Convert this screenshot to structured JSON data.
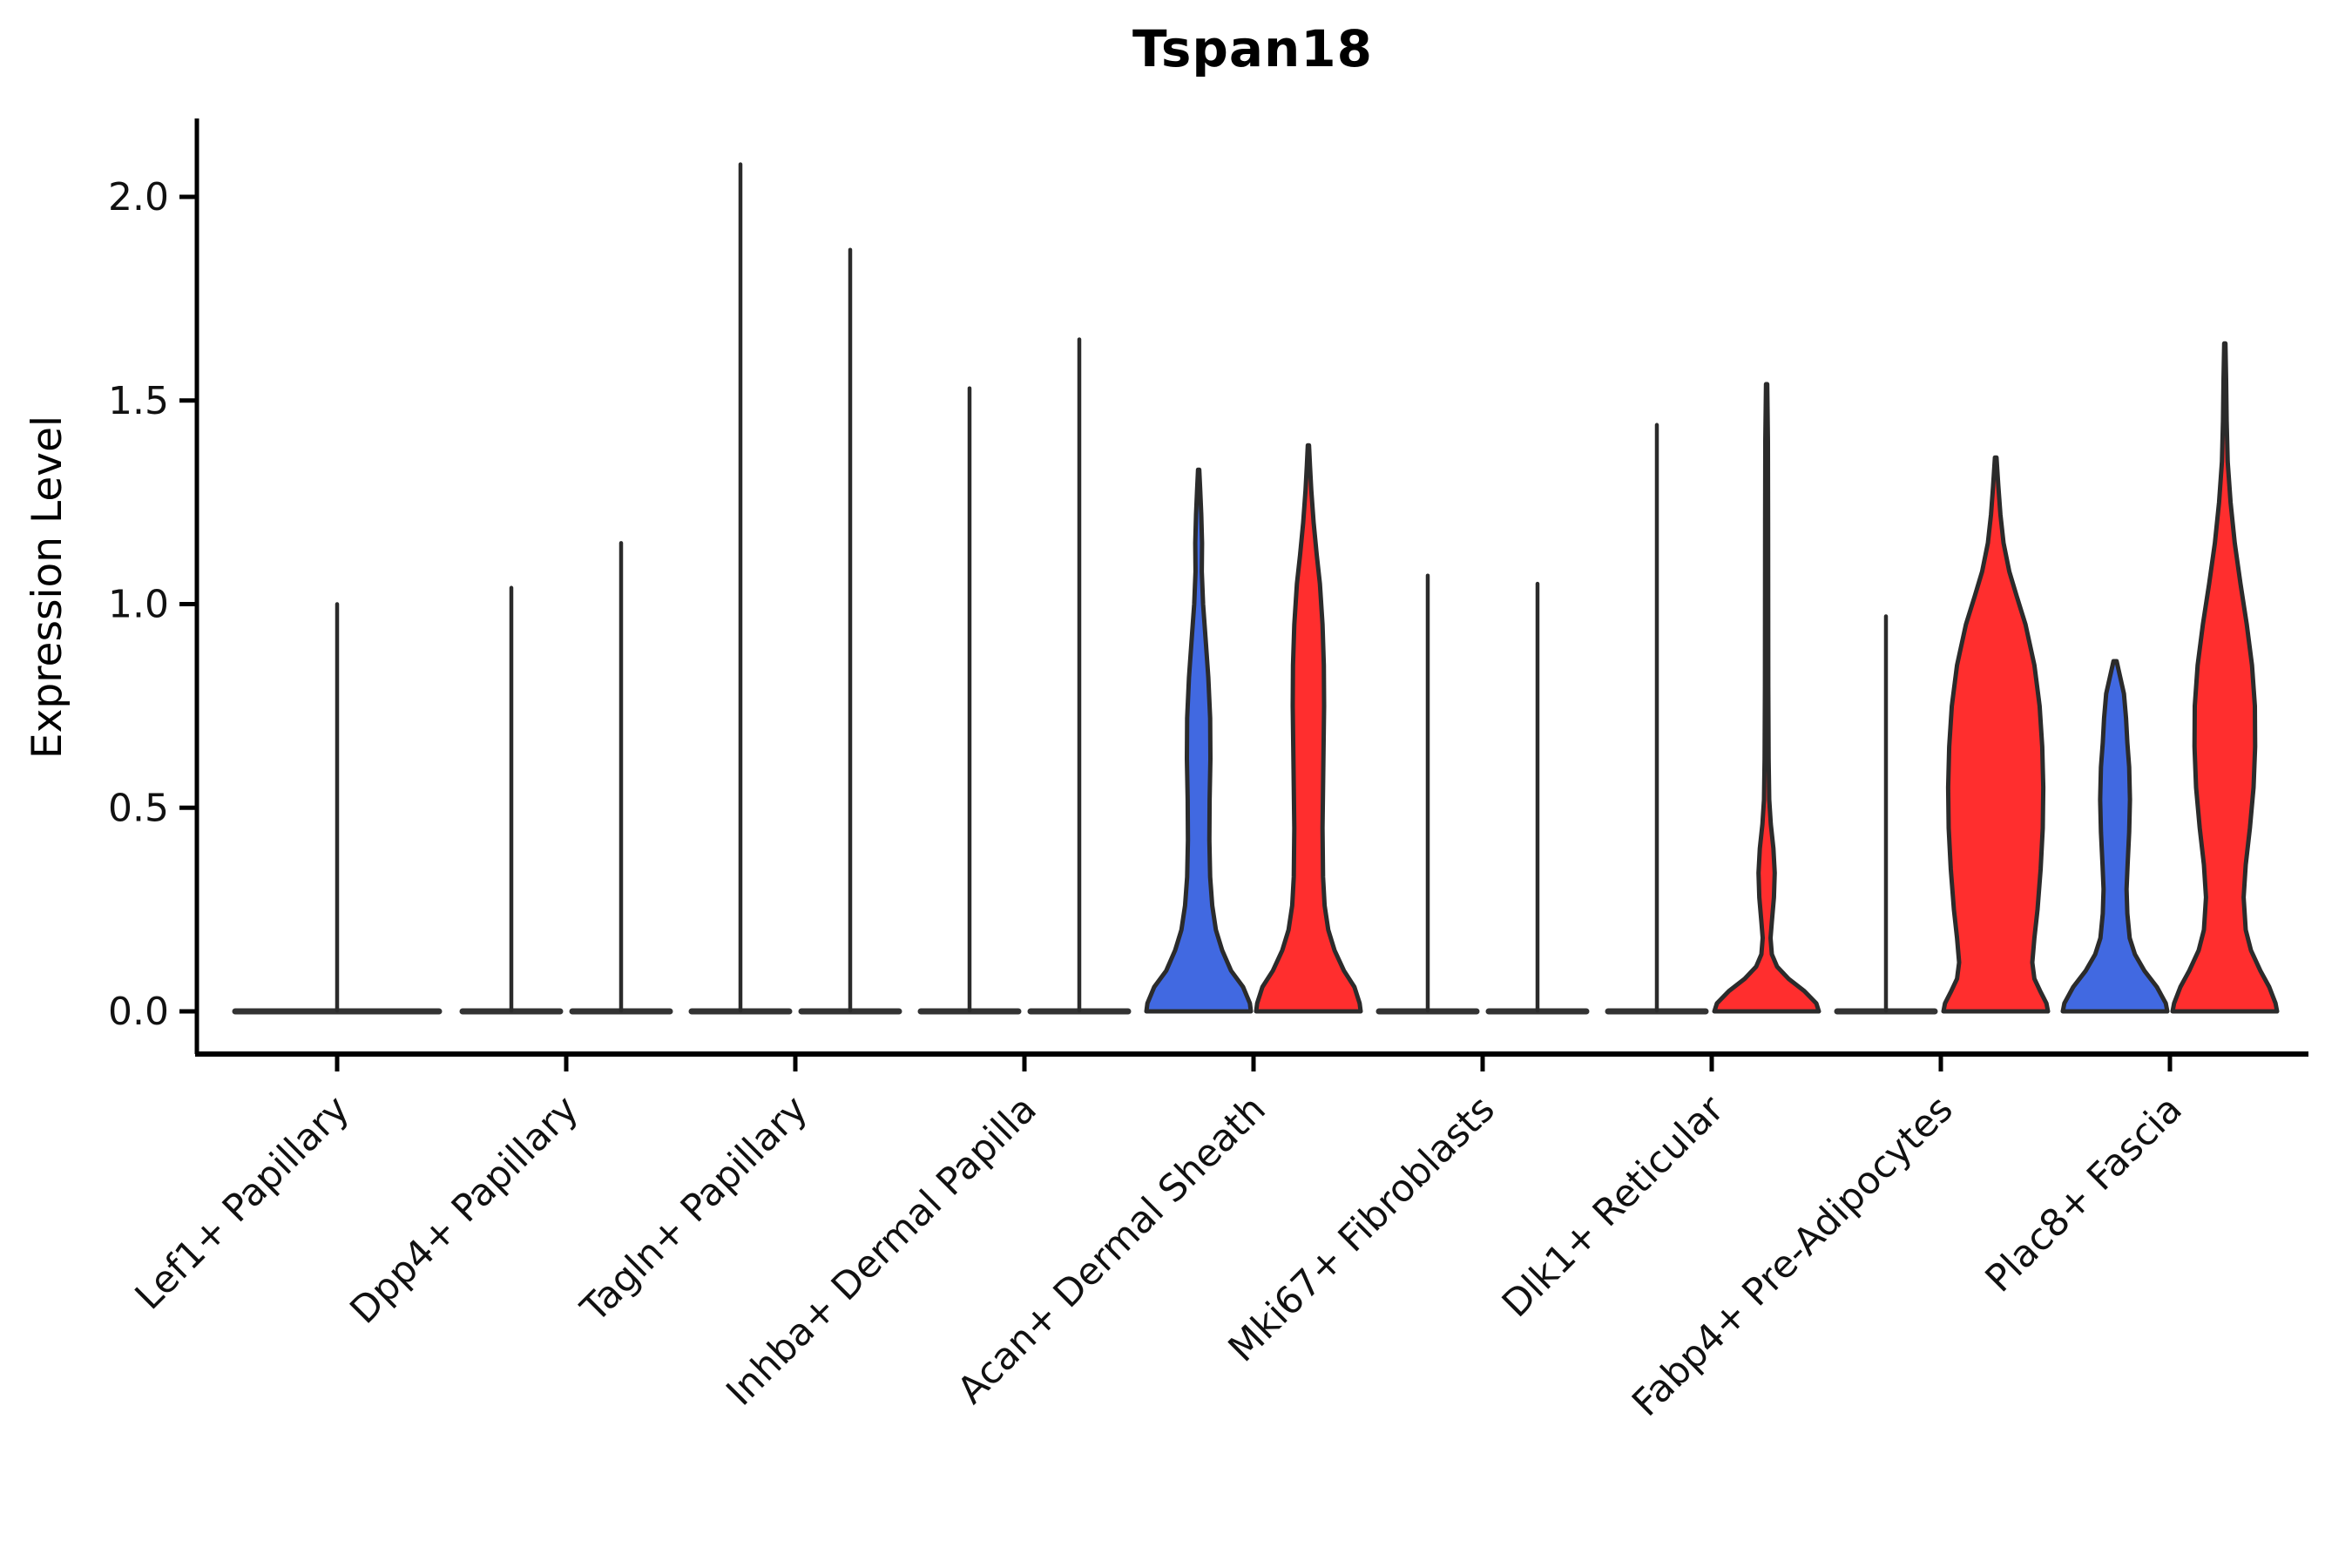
{
  "chart_data": {
    "type": "violin",
    "title": "Tspan18",
    "ylabel": "Expression Level",
    "xlabel": "",
    "grid": false,
    "legend": "none",
    "ylim": [
      -0.1,
      2.19
    ],
    "yticks": [
      0.0,
      0.5,
      1.0,
      1.5,
      2.0
    ],
    "xtick_rotation_deg": 45,
    "colors": {
      "blue_fill": "#4169E1",
      "red_fill": "#FF2E2E",
      "outline": "#2b2b2b",
      "flat_line": "#333333",
      "axis": "#000000",
      "text": "#111111"
    },
    "categories": [
      "Lef1+ Papillary",
      "Dpp4+ Papillary",
      "Tagln+ Papillary",
      "Inhba+ Dermal Papilla",
      "Acan+ Dermal Sheath",
      "Mki67+ Fibroblasts",
      "Dlk1+ Reticular",
      "Fabp4+ Pre-Adipocytes",
      "Plac8+ Fascia"
    ],
    "violins": [
      {
        "category": "Lef1+ Papillary",
        "items": [
          {
            "side": "single",
            "color": "none",
            "style": "flat",
            "max": 1.0
          }
        ]
      },
      {
        "category": "Dpp4+ Papillary",
        "items": [
          {
            "side": "left",
            "color": "blue",
            "style": "flat",
            "max": 1.04
          },
          {
            "side": "right",
            "color": "red",
            "style": "flat",
            "max": 1.15
          }
        ]
      },
      {
        "category": "Tagln+ Papillary",
        "items": [
          {
            "side": "left",
            "color": "blue",
            "style": "flat",
            "max": 2.08
          },
          {
            "side": "right",
            "color": "red",
            "style": "flat",
            "max": 1.87
          }
        ]
      },
      {
        "category": "Inhba+ Dermal Papilla",
        "items": [
          {
            "side": "left",
            "color": "blue",
            "style": "flat",
            "max": 1.53
          },
          {
            "side": "right",
            "color": "red",
            "style": "flat",
            "max": 1.65
          }
        ]
      },
      {
        "category": "Acan+ Dermal Sheath",
        "items": [
          {
            "side": "left",
            "color": "blue",
            "style": "body",
            "max": 1.33,
            "profile": [
              [
                0.0,
                1.0
              ],
              [
                0.02,
                0.98
              ],
              [
                0.06,
                0.85
              ],
              [
                0.1,
                0.62
              ],
              [
                0.15,
                0.45
              ],
              [
                0.2,
                0.33
              ],
              [
                0.26,
                0.26
              ],
              [
                0.33,
                0.22
              ],
              [
                0.42,
                0.205
              ],
              [
                0.52,
                0.21
              ],
              [
                0.62,
                0.225
              ],
              [
                0.72,
                0.22
              ],
              [
                0.82,
                0.185
              ],
              [
                0.92,
                0.13
              ],
              [
                1.0,
                0.085
              ],
              [
                1.08,
                0.06
              ],
              [
                1.15,
                0.065
              ],
              [
                1.22,
                0.05
              ],
              [
                1.28,
                0.03
              ],
              [
                1.33,
                0.012
              ]
            ]
          },
          {
            "side": "right",
            "color": "red",
            "style": "body",
            "max": 1.39,
            "profile": [
              [
                0.0,
                1.0
              ],
              [
                0.02,
                0.98
              ],
              [
                0.06,
                0.88
              ],
              [
                0.1,
                0.68
              ],
              [
                0.15,
                0.5
              ],
              [
                0.2,
                0.38
              ],
              [
                0.26,
                0.31
              ],
              [
                0.33,
                0.28
              ],
              [
                0.45,
                0.27
              ],
              [
                0.55,
                0.28
              ],
              [
                0.65,
                0.29
              ],
              [
                0.75,
                0.3
              ],
              [
                0.85,
                0.295
              ],
              [
                0.95,
                0.27
              ],
              [
                1.05,
                0.22
              ],
              [
                1.12,
                0.16
              ],
              [
                1.2,
                0.1
              ],
              [
                1.28,
                0.055
              ],
              [
                1.34,
                0.03
              ],
              [
                1.39,
                0.012
              ]
            ]
          }
        ]
      },
      {
        "category": "Mki67+ Fibroblasts",
        "items": [
          {
            "side": "left",
            "color": "blue",
            "style": "flat",
            "max": 1.07
          },
          {
            "side": "right",
            "color": "red",
            "style": "flat",
            "max": 1.05
          }
        ]
      },
      {
        "category": "Dlk1+ Reticular",
        "items": [
          {
            "side": "left",
            "color": "blue",
            "style": "flat",
            "max": 1.44
          },
          {
            "side": "right",
            "color": "red",
            "style": "body",
            "max": 1.54,
            "profile": [
              [
                0.0,
                1.0
              ],
              [
                0.02,
                0.95
              ],
              [
                0.05,
                0.72
              ],
              [
                0.08,
                0.42
              ],
              [
                0.11,
                0.2
              ],
              [
                0.14,
                0.1
              ],
              [
                0.18,
                0.075
              ],
              [
                0.22,
                0.1
              ],
              [
                0.28,
                0.14
              ],
              [
                0.34,
                0.155
              ],
              [
                0.4,
                0.13
              ],
              [
                0.46,
                0.08
              ],
              [
                0.52,
                0.05
              ],
              [
                0.62,
                0.038
              ],
              [
                0.8,
                0.032
              ],
              [
                1.0,
                0.03
              ],
              [
                1.2,
                0.028
              ],
              [
                1.4,
                0.025
              ],
              [
                1.54,
                0.012
              ]
            ]
          }
        ]
      },
      {
        "category": "Fabp4+ Pre-Adipocytes",
        "items": [
          {
            "side": "left",
            "color": "blue",
            "style": "flat",
            "max": 0.97
          },
          {
            "side": "right",
            "color": "red",
            "style": "body",
            "max": 1.36,
            "profile": [
              [
                0.0,
                1.0
              ],
              [
                0.02,
                0.97
              ],
              [
                0.05,
                0.85
              ],
              [
                0.08,
                0.74
              ],
              [
                0.12,
                0.7
              ],
              [
                0.18,
                0.74
              ],
              [
                0.25,
                0.8
              ],
              [
                0.35,
                0.86
              ],
              [
                0.45,
                0.9
              ],
              [
                0.55,
                0.91
              ],
              [
                0.65,
                0.89
              ],
              [
                0.75,
                0.84
              ],
              [
                0.85,
                0.74
              ],
              [
                0.95,
                0.57
              ],
              [
                1.02,
                0.4
              ],
              [
                1.08,
                0.26
              ],
              [
                1.15,
                0.15
              ],
              [
                1.22,
                0.09
              ],
              [
                1.29,
                0.05
              ],
              [
                1.36,
                0.015
              ]
            ]
          }
        ]
      },
      {
        "category": "Plac8+ Fascia",
        "items": [
          {
            "side": "left",
            "color": "blue",
            "style": "body",
            "max": 0.86,
            "profile": [
              [
                0.0,
                1.0
              ],
              [
                0.02,
                0.97
              ],
              [
                0.06,
                0.8
              ],
              [
                0.1,
                0.56
              ],
              [
                0.14,
                0.38
              ],
              [
                0.18,
                0.28
              ],
              [
                0.24,
                0.235
              ],
              [
                0.3,
                0.22
              ],
              [
                0.36,
                0.24
              ],
              [
                0.44,
                0.27
              ],
              [
                0.52,
                0.285
              ],
              [
                0.6,
                0.27
              ],
              [
                0.66,
                0.235
              ],
              [
                0.72,
                0.21
              ],
              [
                0.78,
                0.17
              ],
              [
                0.82,
                0.1
              ],
              [
                0.86,
                0.03
              ]
            ]
          },
          {
            "side": "right",
            "color": "red",
            "style": "body",
            "max": 1.64,
            "profile": [
              [
                0.0,
                1.0
              ],
              [
                0.02,
                0.97
              ],
              [
                0.06,
                0.85
              ],
              [
                0.1,
                0.68
              ],
              [
                0.15,
                0.5
              ],
              [
                0.2,
                0.4
              ],
              [
                0.28,
                0.36
              ],
              [
                0.36,
                0.4
              ],
              [
                0.45,
                0.48
              ],
              [
                0.55,
                0.55
              ],
              [
                0.65,
                0.58
              ],
              [
                0.75,
                0.575
              ],
              [
                0.85,
                0.52
              ],
              [
                0.95,
                0.42
              ],
              [
                1.05,
                0.3
              ],
              [
                1.15,
                0.19
              ],
              [
                1.25,
                0.11
              ],
              [
                1.35,
                0.055
              ],
              [
                1.45,
                0.035
              ],
              [
                1.55,
                0.025
              ],
              [
                1.64,
                0.012
              ]
            ]
          }
        ]
      }
    ]
  }
}
